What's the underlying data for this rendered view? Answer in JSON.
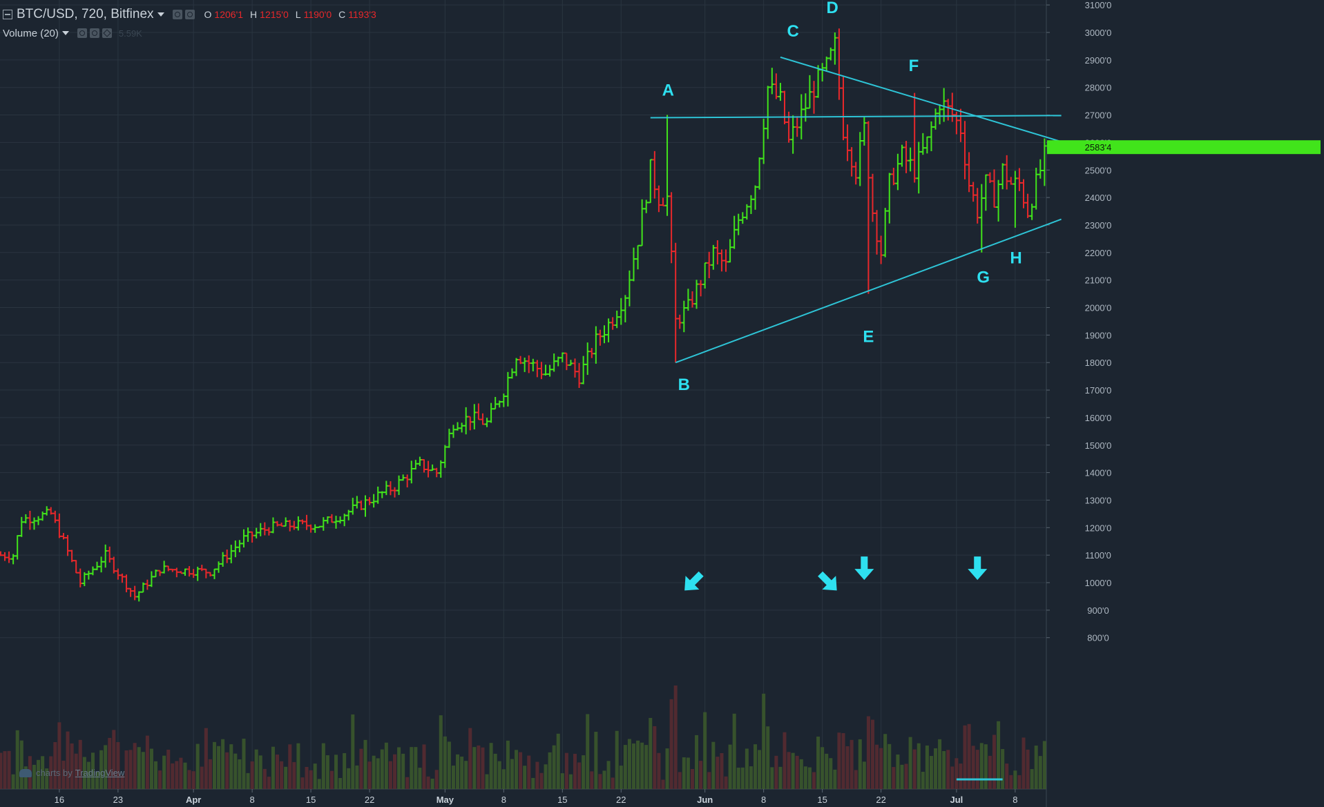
{
  "header": {
    "symbol": "BTC/USD, 720, Bitfinex",
    "open_label": "O",
    "open_value": "1206'1",
    "high_label": "H",
    "high_value": "1215'0",
    "low_label": "L",
    "low_value": "1190'0",
    "close_label": "C",
    "close_value": "1193'3",
    "volume_label": "Volume (20)",
    "volume_value": "5.59K"
  },
  "watermark": {
    "prefix": "charts by",
    "brand": "TradingView"
  },
  "colors": {
    "background": "#1c2530",
    "grid": "#2a3540",
    "up": "#41e41b",
    "down": "#e8282b",
    "line": "#2ec4d6",
    "label": "#2ee0f0",
    "price_tag": "#41e41b"
  },
  "chart_data": {
    "type": "ohlc",
    "y_axis": {
      "min": 800,
      "max": 3100,
      "ticks": [
        "3100'0",
        "3000'0",
        "2900'0",
        "2800'0",
        "2700'0",
        "2600'0",
        "2500'0",
        "2400'0",
        "2300'0",
        "2200'0",
        "2100'0",
        "2000'0",
        "1900'0",
        "1800'0",
        "1700'0",
        "1600'0",
        "1500'0",
        "1400'0",
        "1300'0",
        "1200'0",
        "1100'0",
        "1000'0",
        "900'0",
        "800'0"
      ]
    },
    "x_axis": {
      "ticks": [
        {
          "day": 0,
          "label": "16"
        },
        {
          "day": 7,
          "label": "23"
        },
        {
          "day": 16,
          "label": "Apr"
        },
        {
          "day": 23,
          "label": "8"
        },
        {
          "day": 30,
          "label": "15"
        },
        {
          "day": 37,
          "label": "22"
        },
        {
          "day": 46,
          "label": "May"
        },
        {
          "day": 53,
          "label": "8"
        },
        {
          "day": 60,
          "label": "15"
        },
        {
          "day": 67,
          "label": "22"
        },
        {
          "day": 77,
          "label": "Jun"
        },
        {
          "day": 84,
          "label": "8"
        },
        {
          "day": 91,
          "label": "15"
        },
        {
          "day": 98,
          "label": "22"
        },
        {
          "day": 107,
          "label": "Jul"
        },
        {
          "day": 114,
          "label": "8"
        }
      ]
    },
    "price_tag": "2583'4",
    "last_price": 2583,
    "anchors": [
      {
        "day": -5.5,
        "price": 1100
      },
      {
        "day": -4.5,
        "price": 1230
      },
      {
        "day": -1,
        "price": 1250
      },
      {
        "day": 0.5,
        "price": 1150
      },
      {
        "day": 2.5,
        "price": 1000
      },
      {
        "day": 5.5,
        "price": 1100
      },
      {
        "day": 9,
        "price": 950
      },
      {
        "day": 12,
        "price": 1050
      },
      {
        "day": 18,
        "price": 1040
      },
      {
        "day": 20,
        "price": 1100
      },
      {
        "day": 22,
        "price": 1160
      },
      {
        "day": 25,
        "price": 1200
      },
      {
        "day": 28,
        "price": 1210
      },
      {
        "day": 31,
        "price": 1210
      },
      {
        "day": 34,
        "price": 1250
      },
      {
        "day": 37,
        "price": 1300
      },
      {
        "day": 40,
        "price": 1350
      },
      {
        "day": 43,
        "price": 1430
      },
      {
        "day": 45,
        "price": 1400
      },
      {
        "day": 47,
        "price": 1580
      },
      {
        "day": 49,
        "price": 1600
      },
      {
        "day": 51,
        "price": 1580
      },
      {
        "day": 53,
        "price": 1700
      },
      {
        "day": 54.5,
        "price": 1830
      },
      {
        "day": 56,
        "price": 1800
      },
      {
        "day": 58,
        "price": 1760
      },
      {
        "day": 60,
        "price": 1820
      },
      {
        "day": 62,
        "price": 1750
      },
      {
        "day": 64,
        "price": 1880
      },
      {
        "day": 66,
        "price": 1960
      },
      {
        "day": 67.5,
        "price": 2050
      },
      {
        "day": 69,
        "price": 2250
      },
      {
        "day": 70.5,
        "price": 2500
      },
      {
        "day": 71.5,
        "price": 2400
      },
      {
        "day": 72.5,
        "price": 2400
      },
      {
        "day": 73.5,
        "price": 1950
      },
      {
        "day": 75,
        "price": 2000
      },
      {
        "day": 76.5,
        "price": 2100
      },
      {
        "day": 78,
        "price": 2200
      },
      {
        "day": 79.5,
        "price": 2150
      },
      {
        "day": 81,
        "price": 2320
      },
      {
        "day": 83,
        "price": 2450
      },
      {
        "day": 84.5,
        "price": 2800
      },
      {
        "day": 86,
        "price": 2750
      },
      {
        "day": 87,
        "price": 2600
      },
      {
        "day": 88.5,
        "price": 2700
      },
      {
        "day": 90,
        "price": 2800
      },
      {
        "day": 91.5,
        "price": 2870
      },
      {
        "day": 92.5,
        "price": 2950
      },
      {
        "day": 93.5,
        "price": 2650
      },
      {
        "day": 95,
        "price": 2500
      },
      {
        "day": 96,
        "price": 2650
      },
      {
        "day": 97,
        "price": 2350
      },
      {
        "day": 98,
        "price": 2200
      },
      {
        "day": 99,
        "price": 2450
      },
      {
        "day": 100.5,
        "price": 2550
      },
      {
        "day": 102,
        "price": 2500
      },
      {
        "day": 103.5,
        "price": 2600
      },
      {
        "day": 105,
        "price": 2750
      },
      {
        "day": 106.5,
        "price": 2700
      },
      {
        "day": 107.5,
        "price": 2650
      },
      {
        "day": 108.5,
        "price": 2450
      },
      {
        "day": 109.5,
        "price": 2350
      },
      {
        "day": 110.5,
        "price": 2450
      },
      {
        "day": 111.5,
        "price": 2400
      },
      {
        "day": 112.5,
        "price": 2500
      },
      {
        "day": 113.5,
        "price": 2450
      },
      {
        "day": 114.5,
        "price": 2450
      },
      {
        "day": 115.5,
        "price": 2350
      },
      {
        "day": 116.5,
        "price": 2450
      },
      {
        "day": 117.5,
        "price": 2550
      },
      {
        "day": 118.5,
        "price": 2600
      },
      {
        "day": 119.5,
        "price": 2530
      },
      {
        "day": 120.5,
        "price": 2583
      }
    ],
    "extremes": [
      {
        "day": 72.5,
        "high": 2700
      },
      {
        "day": 73.5,
        "low": 1800
      },
      {
        "day": 92.5,
        "high": 3000
      },
      {
        "day": 96.5,
        "low": 2050
      },
      {
        "day": 102,
        "high": 2780
      },
      {
        "day": 110,
        "low": 2200
      },
      {
        "day": 114,
        "low": 2290
      }
    ],
    "trendlines": [
      {
        "from": {
          "day": 70.5,
          "price": 2690
        },
        "to": {
          "day": 119.5,
          "price": 2698
        }
      },
      {
        "from": {
          "day": 86,
          "price": 2910
        },
        "to": {
          "day": 119.5,
          "price": 2603
        }
      },
      {
        "from": {
          "day": 73.5,
          "price": 1800
        },
        "to": {
          "day": 119.5,
          "price": 2321
        }
      }
    ],
    "wave_labels": [
      {
        "text": "A",
        "day": 72.6,
        "price": 2770
      },
      {
        "text": "B",
        "day": 74.5,
        "price": 1700
      },
      {
        "text": "C",
        "day": 87.5,
        "price": 2985
      },
      {
        "text": "D",
        "day": 92.2,
        "price": 3070
      },
      {
        "text": "E",
        "day": 96.5,
        "price": 1875
      },
      {
        "text": "F",
        "day": 101.9,
        "price": 2860
      },
      {
        "text": "G",
        "day": 110.2,
        "price": 2090
      },
      {
        "text": "H",
        "day": 114.1,
        "price": 2160
      }
    ],
    "arrows": [
      {
        "day": 75.5,
        "price": 1000,
        "direction": "down-left"
      },
      {
        "day": 91.8,
        "price": 1000,
        "direction": "down-right"
      },
      {
        "day": 96,
        "price": 1050,
        "direction": "down"
      },
      {
        "day": 109.5,
        "price": 1050,
        "direction": "down"
      }
    ]
  }
}
